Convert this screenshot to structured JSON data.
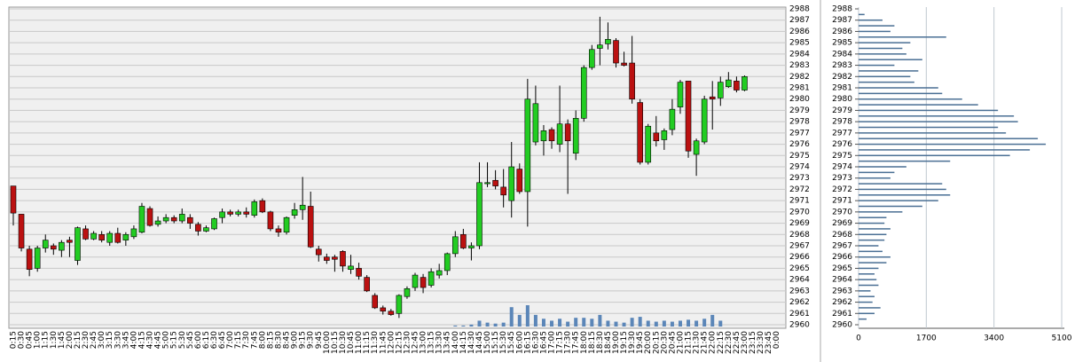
{
  "chart_data": [
    {
      "type": "candlestick",
      "x": [
        "0:15",
        "0:30",
        "0:45",
        "1:00",
        "1:15",
        "1:30",
        "1:45",
        "2:00",
        "2:15",
        "2:30",
        "2:45",
        "3:00",
        "3:15",
        "3:30",
        "3:45",
        "4:00",
        "4:15",
        "4:30",
        "4:45",
        "5:00",
        "5:15",
        "5:30",
        "5:45",
        "6:00",
        "6:15",
        "6:30",
        "6:45",
        "7:00",
        "7:15",
        "7:30",
        "7:45",
        "8:00",
        "8:15",
        "8:30",
        "8:45",
        "9:00",
        "9:15",
        "9:30",
        "9:45",
        "10:00",
        "10:15",
        "10:30",
        "10:45",
        "11:00",
        "11:15",
        "11:30",
        "11:45",
        "12:00",
        "12:15",
        "12:30",
        "12:45",
        "13:00",
        "13:15",
        "13:30",
        "13:45",
        "14:00",
        "14:15",
        "14:30",
        "14:45",
        "15:00",
        "15:15",
        "15:30",
        "15:45",
        "16:00",
        "16:15",
        "16:30",
        "16:45",
        "17:00",
        "17:15",
        "17:30",
        "17:45",
        "18:00",
        "18:15",
        "18:30",
        "18:45",
        "19:00",
        "19:15",
        "19:30",
        "19:45",
        "20:00",
        "20:15",
        "20:30",
        "20:45",
        "21:00",
        "21:15",
        "21:30",
        "21:45",
        "22:00",
        "22:15",
        "22:30",
        "22:45",
        "23:00",
        "23:15",
        "23:30",
        "23:45",
        "0:00"
      ],
      "open": [
        2972.3,
        2969.8,
        2966.7,
        2965,
        2966.8,
        2967,
        2966.6,
        2967.5,
        2965.7,
        2968.5,
        2967.6,
        2968,
        2967.3,
        2968.1,
        2967.5,
        2967.8,
        2968.2,
        2970.3,
        2968.9,
        2969.2,
        2969.5,
        2969.2,
        2969.5,
        2968.9,
        2968.3,
        2968.5,
        2969.5,
        2970,
        2969.8,
        2970,
        2969.7,
        2971,
        2970,
        2968.5,
        2968.2,
        2969.7,
        2970.2,
        2970.5,
        2966.7,
        2966,
        2966,
        2966.5,
        2964.9,
        2965,
        2964.2,
        2962.6,
        2961.5,
        2961.2,
        2961,
        2962.5,
        2963.3,
        2964.2,
        2963.5,
        2964.4,
        2964.8,
        2966.3,
        2968,
        2966.8,
        2967,
        2972.5,
        2972.8,
        2972.2,
        2971,
        2973.8,
        2971.8,
        2976.2,
        2976.3,
        2977.3,
        2976,
        2977.8,
        2975.2,
        2978.3,
        2982.8,
        2984.5,
        2984.9,
        2985.2,
        2983.2,
        2983.2,
        2979.7,
        2974.4,
        2977,
        2976.4,
        2977.3,
        2979.3,
        2981.6,
        2975.1,
        2976.2,
        2980.2,
        2980.1,
        2981.1,
        2981.6,
        2980.8,
        null,
        null,
        null,
        null
      ],
      "high": [
        2972.3,
        2969.8,
        2967,
        2967,
        2968,
        2967.2,
        2967.5,
        2967.8,
        2968.7,
        2968.8,
        2968.3,
        2968.3,
        2968.3,
        2968.6,
        2968.2,
        2968.8,
        2970.8,
        2970.5,
        2969.6,
        2969.8,
        2969.7,
        2970.3,
        2969.8,
        2969.1,
        2968.8,
        2969.5,
        2970.3,
        2970.2,
        2970.2,
        2970.4,
        2971.1,
        2971.2,
        2970.1,
        2968.8,
        2969.6,
        2970.8,
        2973.1,
        2971.8,
        2967,
        2966.3,
        2966.2,
        2966.6,
        2966.2,
        2965.5,
        2964.4,
        2962.8,
        2961.7,
        2961.4,
        2962.7,
        2963.4,
        2964.6,
        2964.5,
        2965,
        2965.4,
        2966.4,
        2968.3,
        2968.5,
        2967.3,
        2974.4,
        2974.4,
        2973.7,
        2973.8,
        2976.2,
        2974.3,
        2981.8,
        2981.2,
        2977.7,
        2977.5,
        2981.2,
        2978.2,
        2979,
        2983,
        2984.8,
        2987.3,
        2986.8,
        2985.4,
        2984.2,
        2985.6,
        2980,
        2977.8,
        2978.5,
        2977.4,
        2980,
        2981.7,
        2981.6,
        2976.5,
        2980.3,
        2981.6,
        2982,
        2982.4,
        2982,
        2982.1,
        null,
        null,
        null,
        null
      ],
      "low": [
        2968.8,
        2966.5,
        2964.3,
        2964.7,
        2966.4,
        2966.2,
        2966,
        2966,
        2965.3,
        2967.5,
        2967.5,
        2967.3,
        2967,
        2967.2,
        2967,
        2967.6,
        2968.1,
        2968.7,
        2968.7,
        2969,
        2969,
        2969,
        2968.5,
        2967.9,
        2968.2,
        2968.4,
        2969,
        2969.6,
        2969.6,
        2969.5,
        2969.5,
        2969.9,
        2968.3,
        2967.8,
        2968,
        2969.4,
        2969.3,
        2966.8,
        2965.6,
        2965.4,
        2964.7,
        2964.7,
        2964.5,
        2964,
        2962.9,
        2961.4,
        2960.9,
        2960.8,
        2960.6,
        2962.3,
        2963,
        2962.8,
        2963.3,
        2964.1,
        2964.4,
        2966,
        2966.7,
        2965.7,
        2966.7,
        2972.2,
        2972,
        2970.4,
        2969.5,
        2971.6,
        2968.7,
        2975.9,
        2975,
        2975.6,
        2975.3,
        2971.6,
        2974.6,
        2978,
        2982.6,
        2983,
        2984.4,
        2982.8,
        2982.9,
        2979.6,
        2974.2,
        2974.2,
        2975.8,
        2975.5,
        2976.8,
        2978.7,
        2974.8,
        2973.2,
        2976,
        2977.3,
        2979.4,
        2981,
        2980.6,
        2980.7,
        null,
        null,
        null,
        null
      ],
      "close": [
        2969.9,
        2966.8,
        2964.9,
        2966.8,
        2967.5,
        2966.7,
        2967.3,
        2967.3,
        2968.6,
        2967.6,
        2968.1,
        2967.5,
        2968.1,
        2967.3,
        2968,
        2968.5,
        2970.5,
        2968.8,
        2969.2,
        2969.5,
        2969.2,
        2969.8,
        2969,
        2968.3,
        2968.6,
        2969.4,
        2970,
        2969.8,
        2970,
        2969.8,
        2970.9,
        2970,
        2968.5,
        2968.2,
        2969.5,
        2970.2,
        2970.6,
        2966.9,
        2966.2,
        2965.7,
        2965.8,
        2965.2,
        2965.2,
        2964.3,
        2963,
        2961.5,
        2961.2,
        2960.9,
        2962.6,
        2963.2,
        2964.4,
        2963.3,
        2964.7,
        2964.8,
        2966.3,
        2967.8,
        2966.8,
        2967,
        2972.6,
        2972.6,
        2972.3,
        2971.5,
        2974,
        2971.8,
        2980,
        2979.6,
        2977.2,
        2976.3,
        2977.8,
        2976.3,
        2978.3,
        2982.8,
        2984.4,
        2984.8,
        2985.3,
        2983.2,
        2983,
        2980,
        2974.4,
        2977.6,
        2976.3,
        2977.2,
        2979.1,
        2981.5,
        2975.4,
        2976.3,
        2980,
        2980,
        2981.5,
        2981.7,
        2980.8,
        2982,
        null,
        null,
        null,
        null
      ],
      "volume": [
        null,
        null,
        null,
        null,
        null,
        null,
        null,
        null,
        null,
        null,
        null,
        null,
        null,
        null,
        null,
        null,
        null,
        null,
        null,
        null,
        null,
        null,
        null,
        null,
        null,
        null,
        null,
        null,
        null,
        null,
        null,
        null,
        null,
        null,
        null,
        null,
        null,
        null,
        null,
        null,
        null,
        null,
        null,
        null,
        null,
        null,
        null,
        null,
        null,
        null,
        null,
        null,
        null,
        null,
        null,
        1,
        1,
        2,
        6,
        4,
        3,
        4,
        20,
        12,
        22,
        12,
        8,
        6,
        8,
        5,
        9,
        9,
        8,
        12,
        6,
        5,
        4,
        9,
        10,
        6,
        5,
        6,
        5,
        6,
        7,
        6,
        8,
        12,
        6,
        null,
        null,
        null,
        null,
        null,
        null,
        null
      ],
      "up_color": "#22cc22",
      "down_color": "#bb1111",
      "volume_color": "#5b86b8",
      "ylim": [
        2960,
        2988
      ],
      "yticks": [
        2960,
        2961,
        2962,
        2963,
        2964,
        2965,
        2966,
        2967,
        2968,
        2969,
        2970,
        2971,
        2972,
        2973,
        2974,
        2975,
        2976,
        2977,
        2978,
        2979,
        2980,
        2981,
        2982,
        2983,
        2984,
        2985,
        2986,
        2987,
        2988
      ],
      "grid": true
    },
    {
      "type": "profile",
      "levels": [
        2960.5,
        2961,
        2961.5,
        2962,
        2962.5,
        2963,
        2963.5,
        2964,
        2964.5,
        2965,
        2965.5,
        2966,
        2966.5,
        2967,
        2967.5,
        2968,
        2968.5,
        2969,
        2969.5,
        2970,
        2970.5,
        2971,
        2971.5,
        2972,
        2972.5,
        2973,
        2973.5,
        2974,
        2974.5,
        2975,
        2975.5,
        2976,
        2976.5,
        2977,
        2977.5,
        2978,
        2978.5,
        2979,
        2979.5,
        2980,
        2980.5,
        2981,
        2981.5,
        2982,
        2982.5,
        2983,
        2983.5,
        2984,
        2984.5,
        2985,
        2985.5,
        2986,
        2986.5,
        2987,
        2987.5
      ],
      "values": [
        200,
        400,
        550,
        350,
        400,
        300,
        500,
        450,
        400,
        500,
        700,
        800,
        600,
        500,
        650,
        700,
        800,
        650,
        700,
        1100,
        1600,
        2000,
        2300,
        2200,
        2100,
        800,
        900,
        1200,
        2300,
        3800,
        4300,
        4700,
        4500,
        3700,
        3500,
        4000,
        3900,
        3500,
        3000,
        2600,
        2100,
        2000,
        1400,
        1300,
        1500,
        900,
        1600,
        1200,
        1100,
        1300,
        2200,
        800,
        900,
        600,
        150
      ],
      "color": "#4a6f94",
      "xlim": [
        0,
        5100
      ],
      "xticks": [
        0,
        1700,
        3400,
        5100
      ],
      "ylim": [
        2960,
        2988
      ],
      "yticks": [
        2960,
        2961,
        2962,
        2963,
        2964,
        2965,
        2966,
        2967,
        2968,
        2969,
        2970,
        2971,
        2972,
        2973,
        2974,
        2975,
        2976,
        2977,
        2978,
        2979,
        2980,
        2981,
        2982,
        2983,
        2984,
        2985,
        2986,
        2987,
        2988
      ],
      "grid": true
    }
  ]
}
